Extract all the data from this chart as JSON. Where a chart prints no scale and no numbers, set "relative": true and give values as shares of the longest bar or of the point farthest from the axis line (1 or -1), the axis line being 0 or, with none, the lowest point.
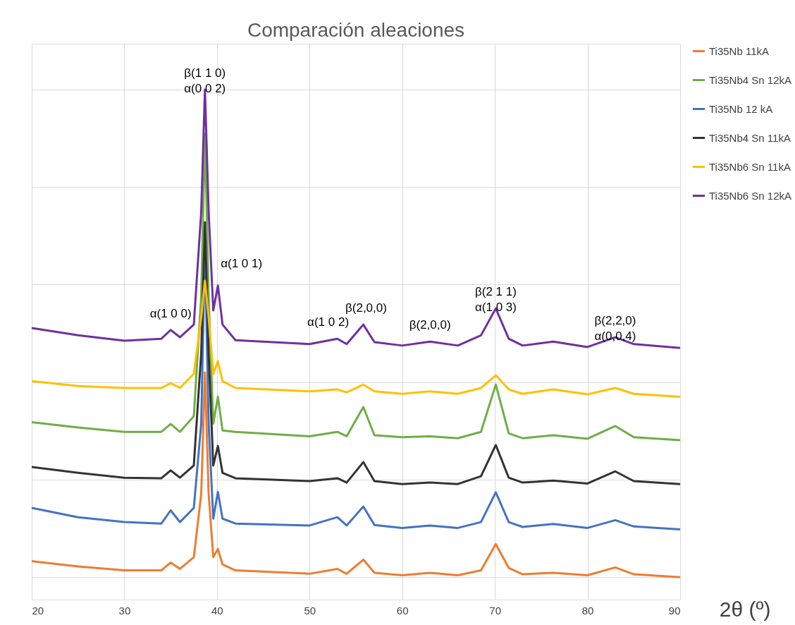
{
  "chart_data": {
    "type": "line",
    "title": "Comparación aleaciones",
    "xlabel": "2θ (º)",
    "relative": true,
    "grid": true,
    "legend": "right",
    "marker": "none",
    "line_style": "solid",
    "xlim": [
      20,
      90
    ],
    "xticks": [
      20,
      30,
      40,
      50,
      60,
      70,
      80,
      90
    ],
    "x": [
      20,
      25,
      30,
      34,
      35,
      36,
      37.5,
      38.3,
      38.7,
      39.1,
      39.6,
      40.1,
      40.6,
      42,
      50,
      53,
      54,
      55.8,
      57,
      60,
      63,
      66,
      68.5,
      70.1,
      71.5,
      73,
      76.3,
      80,
      83,
      85,
      90
    ],
    "series": [
      {
        "name": "Ti35Nb 11kA",
        "color": "#ed7d31",
        "values": [
          0.033,
          0.022,
          0.014,
          0.014,
          0.03,
          0.017,
          0.041,
          0.171,
          0.42,
          0.171,
          0.041,
          0.058,
          0.026,
          0.014,
          0.007,
          0.017,
          0.007,
          0.036,
          0.009,
          0.004,
          0.009,
          0.004,
          0.014,
          0.068,
          0.019,
          0.006,
          0.009,
          0.004,
          0.02,
          0.006,
          0.0
        ]
      },
      {
        "name": "Ti35Nb4 Sn 12kA",
        "color": "#70ad47",
        "values": [
          0.318,
          0.307,
          0.298,
          0.298,
          0.314,
          0.298,
          0.33,
          0.576,
          0.909,
          0.576,
          0.315,
          0.37,
          0.301,
          0.298,
          0.289,
          0.298,
          0.289,
          0.349,
          0.291,
          0.287,
          0.289,
          0.285,
          0.298,
          0.395,
          0.295,
          0.285,
          0.291,
          0.284,
          0.31,
          0.287,
          0.281
        ]
      },
      {
        "name": "Ti35Nb 12 kA",
        "color": "#4472c4",
        "values": [
          0.142,
          0.123,
          0.113,
          0.11,
          0.137,
          0.113,
          0.142,
          0.315,
          0.677,
          0.315,
          0.12,
          0.175,
          0.12,
          0.11,
          0.106,
          0.123,
          0.106,
          0.145,
          0.107,
          0.101,
          0.106,
          0.101,
          0.113,
          0.174,
          0.113,
          0.103,
          0.109,
          0.101,
          0.117,
          0.104,
          0.098
        ]
      },
      {
        "name": "Ti35Nb4 Sn 11kA",
        "color": "#333333",
        "values": [
          0.226,
          0.214,
          0.204,
          0.203,
          0.219,
          0.204,
          0.229,
          0.46,
          0.728,
          0.46,
          0.229,
          0.269,
          0.214,
          0.203,
          0.197,
          0.203,
          0.194,
          0.236,
          0.197,
          0.191,
          0.194,
          0.191,
          0.207,
          0.271,
          0.204,
          0.194,
          0.198,
          0.192,
          0.217,
          0.197,
          0.191
        ]
      },
      {
        "name": "Ti35Nb6 Sn 11kA",
        "color": "#ffc000",
        "values": [
          0.402,
          0.392,
          0.388,
          0.388,
          0.398,
          0.388,
          0.417,
          0.533,
          0.608,
          0.533,
          0.417,
          0.443,
          0.402,
          0.388,
          0.381,
          0.385,
          0.379,
          0.395,
          0.381,
          0.376,
          0.381,
          0.376,
          0.388,
          0.414,
          0.385,
          0.376,
          0.385,
          0.375,
          0.388,
          0.376,
          0.37
        ]
      },
      {
        "name": "Ti35Nb6 Sn 12kA",
        "color": "#7030a0",
        "values": [
          0.511,
          0.496,
          0.485,
          0.489,
          0.507,
          0.492,
          0.518,
          0.75,
          1,
          0.75,
          0.547,
          0.598,
          0.518,
          0.486,
          0.478,
          0.489,
          0.478,
          0.518,
          0.482,
          0.475,
          0.483,
          0.475,
          0.496,
          0.551,
          0.489,
          0.475,
          0.483,
          0.472,
          0.492,
          0.478,
          0.47
        ]
      }
    ],
    "annotations": [
      {
        "text": "β(1 1 0)\nα(0 0 2)",
        "x": 38.7,
        "y": 1
      },
      {
        "text": "α(1 0 0)",
        "x": 35,
        "y": 0.507
      },
      {
        "text": "α(1 0 1)",
        "x": 40.1,
        "y": 0.598
      },
      {
        "text": "α(1 0 2)",
        "x": 52,
        "y": 0.489
      },
      {
        "text": "β(2,0,0)",
        "x": 56.1,
        "y": 0.518
      },
      {
        "text": "β(2,0,0)",
        "x": 63,
        "y": 0.483
      },
      {
        "text": "β(2 1 1)\nα(1 0 3)",
        "x": 70.1,
        "y": 0.551
      },
      {
        "text": "β(2,2,0)\nα(0,0,4)",
        "x": 83,
        "y": 0.492
      }
    ]
  }
}
